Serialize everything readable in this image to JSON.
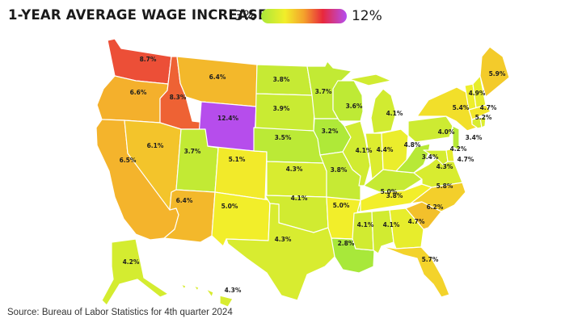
{
  "title": "1-YEAR AVERAGE WAGE INCREASE",
  "legend": {
    "min_label": "3%",
    "max_label": "12%"
  },
  "source": "Source: Bureau of Labor Statistics for 4th quarter 2024",
  "colors": {
    "low": "#a8e83a",
    "mid_low": "#f2ee2a",
    "mid": "#f4a12c",
    "mid_high": "#e8283c",
    "high": "#b44ef2"
  },
  "states": [
    {
      "id": "WA",
      "value": 8.7,
      "label": "8.7%"
    },
    {
      "id": "OR",
      "value": 6.6,
      "label": "6.6%"
    },
    {
      "id": "CA",
      "value": 6.5,
      "label": "6.5%"
    },
    {
      "id": "ID",
      "value": 8.3,
      "label": "8.3%"
    },
    {
      "id": "NV",
      "value": 6.1,
      "label": "6.1%"
    },
    {
      "id": "MT",
      "value": 6.4,
      "label": "6.4%"
    },
    {
      "id": "WY",
      "value": 12.4,
      "label": "12.4%"
    },
    {
      "id": "UT",
      "value": 3.7,
      "label": "3.7%"
    },
    {
      "id": "CO",
      "value": 5.1,
      "label": "5.1%"
    },
    {
      "id": "AZ",
      "value": 6.4,
      "label": "6.4%"
    },
    {
      "id": "NM",
      "value": 5.0,
      "label": "5.0%"
    },
    {
      "id": "ND",
      "value": 3.8,
      "label": "3.8%"
    },
    {
      "id": "SD",
      "value": 3.9,
      "label": "3.9%"
    },
    {
      "id": "NE",
      "value": 3.5,
      "label": "3.5%"
    },
    {
      "id": "KS",
      "value": 4.3,
      "label": "4.3%"
    },
    {
      "id": "OK",
      "value": 4.1,
      "label": "4.1%"
    },
    {
      "id": "TX",
      "value": 4.3,
      "label": "4.3%"
    },
    {
      "id": "MN",
      "value": 3.7,
      "label": "3.7%"
    },
    {
      "id": "IA",
      "value": 3.2,
      "label": "3.2%"
    },
    {
      "id": "MO",
      "value": 3.8,
      "label": "3.8%"
    },
    {
      "id": "AR",
      "value": 5.0,
      "label": "5.0%"
    },
    {
      "id": "LA",
      "value": 2.8,
      "label": "2.8%"
    },
    {
      "id": "WI",
      "value": 3.6,
      "label": "3.6%"
    },
    {
      "id": "IL",
      "value": 4.1,
      "label": "4.1%"
    },
    {
      "id": "MI",
      "value": 4.1,
      "label": "4.1%"
    },
    {
      "id": "IN",
      "value": 4.4,
      "label": "4.4%"
    },
    {
      "id": "OH",
      "value": 4.8,
      "label": "4.8%"
    },
    {
      "id": "KY",
      "value": 3.8,
      "label": "3.8%"
    },
    {
      "id": "TN",
      "value": 5.0,
      "label": "5.0%"
    },
    {
      "id": "MS",
      "value": 4.1,
      "label": "4.1%"
    },
    {
      "id": "AL",
      "value": 4.1,
      "label": "4.1%"
    },
    {
      "id": "GA",
      "value": 4.7,
      "label": "4.7%"
    },
    {
      "id": "FL",
      "value": 5.7,
      "label": "5.7%"
    },
    {
      "id": "SC",
      "value": 6.2,
      "label": "6.2%"
    },
    {
      "id": "NC",
      "value": 5.8,
      "label": "5.8%"
    },
    {
      "id": "VA",
      "value": 4.3,
      "label": "4.3%"
    },
    {
      "id": "WV",
      "value": 3.4,
      "label": "3.4%"
    },
    {
      "id": "PA",
      "value": 4.0,
      "label": "4.0%"
    },
    {
      "id": "NY",
      "value": 5.4,
      "label": "5.4%"
    },
    {
      "id": "VT",
      "value": 4.9,
      "label": "4.9%"
    },
    {
      "id": "NH",
      "value": 4.7,
      "label": "4.7%"
    },
    {
      "id": "ME",
      "value": 5.9,
      "label": "5.9%"
    },
    {
      "id": "MA",
      "value": 5.2,
      "label": "5.2%"
    },
    {
      "id": "NJ",
      "value": 3.4,
      "label": "3.4%"
    },
    {
      "id": "MD",
      "value": 4.2,
      "label": "4.2%"
    },
    {
      "id": "DE",
      "value": 4.7,
      "label": "4.7%"
    },
    {
      "id": "AK",
      "value": 4.2,
      "label": "4.2%"
    },
    {
      "id": "HI",
      "value": 4.3,
      "label": "4.3%"
    }
  ]
}
